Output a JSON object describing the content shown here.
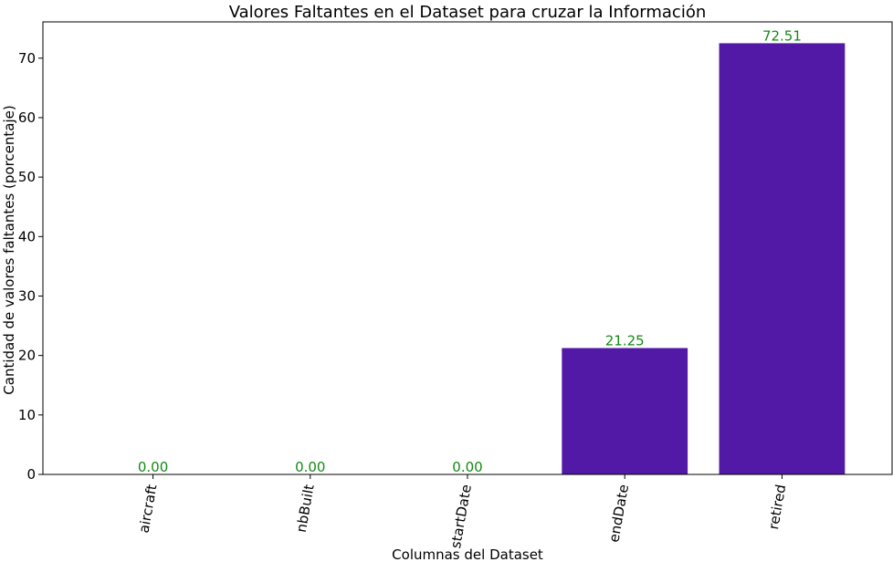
{
  "chart_data": {
    "type": "bar",
    "title": "Valores Faltantes en el  Dataset para cruzar la Información",
    "xlabel": "Columnas del Dataset",
    "ylabel": "Cantidad de valores faltantes (porcentaje)",
    "categories": [
      "aircraft",
      "nbBuilt",
      "startDate",
      "endDate",
      "retired"
    ],
    "values": [
      0.0,
      0.0,
      0.0,
      21.25,
      72.51
    ],
    "data_labels": [
      "0.00",
      "0.00",
      "0.00",
      "21.25",
      "72.51"
    ],
    "ylim": [
      0,
      76.1
    ],
    "yticks": [
      0,
      10,
      20,
      30,
      40,
      50,
      60,
      70
    ],
    "grid": false,
    "colors": {
      "bar": "#5218a6",
      "data_label": "#138a13",
      "axis": "#000000"
    }
  }
}
